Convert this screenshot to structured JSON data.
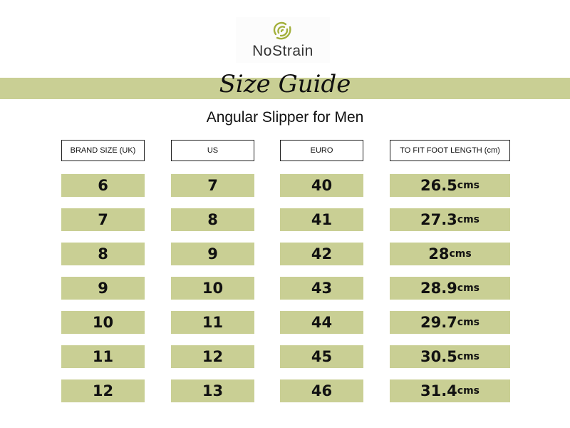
{
  "brand": "NoStrain",
  "title": "Size Guide",
  "subtitle": "Angular Slipper for Men",
  "accent": "#c9cf94",
  "headers": [
    "BRAND SIZE (UK)",
    "US",
    "EURO",
    "TO FIT FOOT LENGTH (cm)"
  ],
  "unit": "cms",
  "rows": [
    [
      "6",
      "7",
      "40",
      "26.5"
    ],
    [
      "7",
      "8",
      "41",
      "27.3"
    ],
    [
      "8",
      "9",
      "42",
      "28"
    ],
    [
      "9",
      "10",
      "43",
      "28.9"
    ],
    [
      "10",
      "11",
      "44",
      "29.7"
    ],
    [
      "11",
      "12",
      "45",
      "30.5"
    ],
    [
      "12",
      "13",
      "46",
      "31.4"
    ]
  ]
}
